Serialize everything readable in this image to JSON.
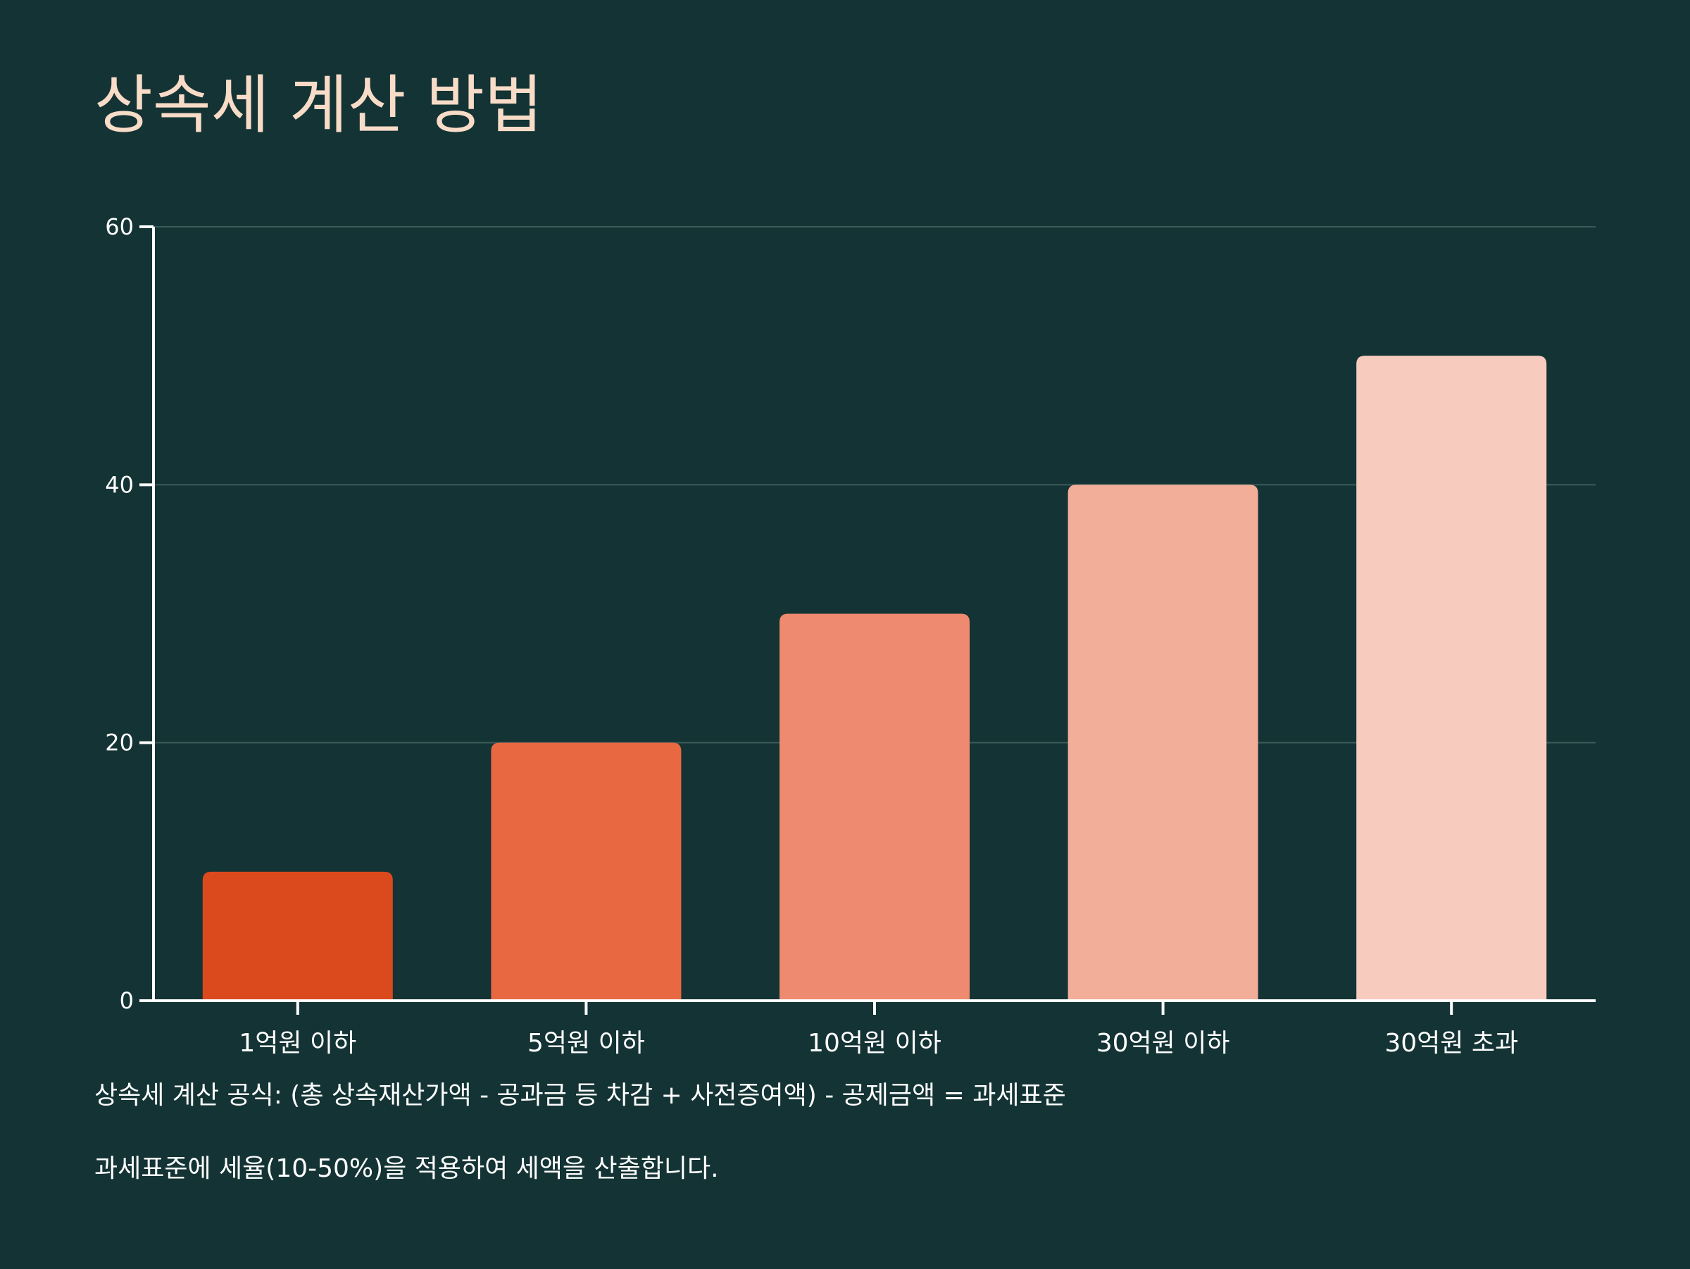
{
  "chart_data": {
    "type": "bar",
    "title": "상속세 계산 방법",
    "xlabel": "",
    "ylabel": "",
    "categories": [
      "1억원 이하",
      "5억원 이하",
      "10억원 이하",
      "30억원 이하",
      "30억원 초과"
    ],
    "values": [
      10,
      20,
      30,
      40,
      50
    ],
    "ylim": [
      0,
      60
    ],
    "yticks": [
      0,
      20,
      40,
      60
    ],
    "grid": true,
    "colors": [
      "#db4a1d",
      "#e86941",
      "#ee8a6f",
      "#f2ae98",
      "#f8cbbf"
    ]
  },
  "notes": {
    "formula": "상속세 계산 공식: (총 상속재산가액 - 공과금 등 차감 + 사전증여액) - 공제금액 = 과세표준",
    "rate": "과세표준에 세율(10-50%)을 적용하여 세액을 산출합니다."
  },
  "colors": {
    "background": "#143334",
    "title": "#f8dcc8",
    "axis": "#ffffff",
    "grid": "#3c5a58"
  }
}
